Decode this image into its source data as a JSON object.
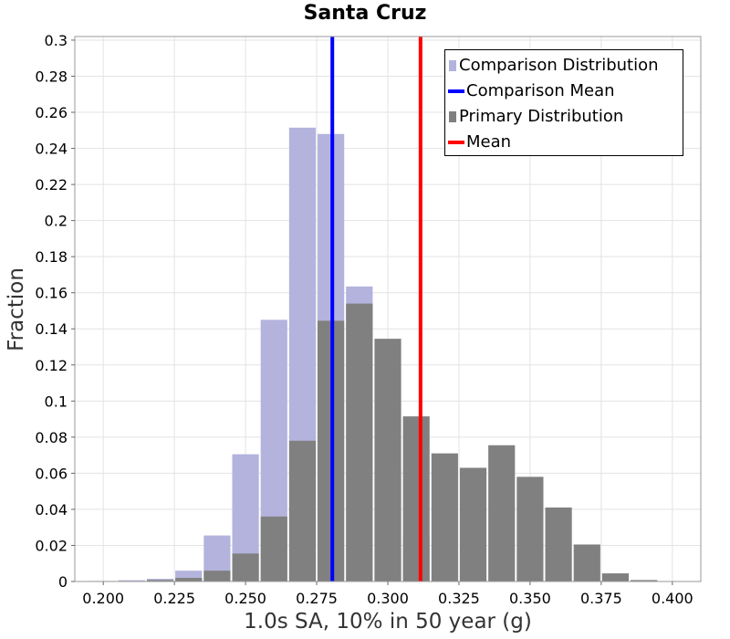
{
  "chart_data": {
    "type": "bar",
    "title": "Santa Cruz",
    "xlabel": "1.0s SA, 10% in 50 year (g)",
    "ylabel": "Fraction",
    "xlim": [
      0.19,
      0.41
    ],
    "ylim": [
      0,
      0.302
    ],
    "bin_width": 0.01,
    "x_ticks": [
      0.2,
      0.225,
      0.25,
      0.275,
      0.3,
      0.325,
      0.35,
      0.375,
      0.4
    ],
    "x_tick_labels": [
      "0.200",
      "0.225",
      "0.250",
      "0.275",
      "0.300",
      "0.325",
      "0.350",
      "0.375",
      "0.400"
    ],
    "y_ticks": [
      0,
      0.02,
      0.04,
      0.06,
      0.08,
      0.1,
      0.12,
      0.14,
      0.16,
      0.18,
      0.2,
      0.22,
      0.24,
      0.26,
      0.28,
      0.3
    ],
    "y_tick_labels": [
      "0",
      "0.02",
      "0.04",
      "0.06",
      "0.08",
      "0.1",
      "0.12",
      "0.14",
      "0.16",
      "0.18",
      "0.2",
      "0.22",
      "0.24",
      "0.26",
      "0.28",
      "0.3"
    ],
    "grid": true,
    "legend_position": "top-right",
    "series": [
      {
        "name": "Comparison Distribution",
        "color": "#b3b3de",
        "bin_centers": [
          0.2,
          0.21,
          0.22,
          0.23,
          0.24,
          0.25,
          0.26,
          0.27,
          0.28,
          0.29,
          0.3,
          0.31
        ],
        "values": [
          0.0003,
          0.0007,
          0.0015,
          0.006,
          0.0255,
          0.0705,
          0.145,
          0.2515,
          0.248,
          0.1635,
          0.062,
          0.025
        ]
      },
      {
        "name": "Primary Distribution",
        "color": "#808080",
        "bin_centers": [
          0.2,
          0.21,
          0.22,
          0.23,
          0.24,
          0.25,
          0.26,
          0.27,
          0.28,
          0.29,
          0.3,
          0.31,
          0.32,
          0.33,
          0.34,
          0.35,
          0.36,
          0.37,
          0.38,
          0.39
        ],
        "values": [
          0.0001,
          0.0002,
          0.0008,
          0.002,
          0.006,
          0.0155,
          0.036,
          0.078,
          0.1445,
          0.154,
          0.1345,
          0.0915,
          0.071,
          0.063,
          0.0755,
          0.058,
          0.041,
          0.0205,
          0.0045,
          0.0008
        ]
      }
    ],
    "reference_lines": [
      {
        "name": "Comparison Mean",
        "x": 0.2805,
        "color": "#0000ff"
      },
      {
        "name": "Mean",
        "x": 0.3115,
        "color": "#ff0000"
      }
    ],
    "legend": [
      {
        "label": "Comparison Distribution",
        "kind": "box",
        "color": "#b3b3de"
      },
      {
        "label": "Comparison Mean",
        "kind": "line",
        "color": "#0000ff"
      },
      {
        "label": "Primary Distribution",
        "kind": "box",
        "color": "#808080"
      },
      {
        "label": "Mean",
        "kind": "line",
        "color": "#ff0000"
      }
    ]
  }
}
